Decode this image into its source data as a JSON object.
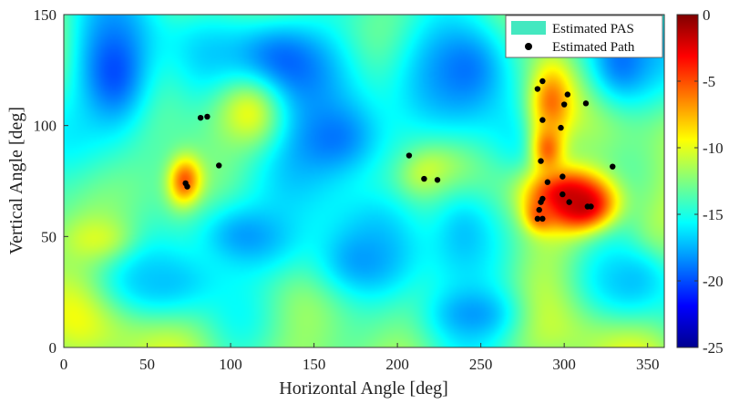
{
  "chart_data": {
    "type": "heatmap",
    "title": "",
    "xlabel": "Horizontal Angle [deg]",
    "ylabel": "Vertical Angle [deg]",
    "xlim": [
      0,
      360
    ],
    "ylim": [
      0,
      150
    ],
    "xticks": [
      "0",
      "50",
      "100",
      "150",
      "200",
      "250",
      "300",
      "350"
    ],
    "yticks": [
      "0",
      "50",
      "100",
      "150"
    ],
    "colorbar": {
      "range": [
        -25,
        0
      ],
      "ticks": [
        "0",
        "-5",
        "-10",
        "-15",
        "-20",
        "-25"
      ],
      "colormap": "jet"
    },
    "legend": {
      "location": "top-right",
      "entries": [
        {
          "label": "Estimated PAS",
          "marker": "patch",
          "color": "#44e8c0"
        },
        {
          "label": "Estimated Path",
          "marker": "dot",
          "color": "#000000"
        }
      ]
    },
    "background_level_db": -12.5,
    "hotspots": [
      {
        "h": 73,
        "v": 74,
        "sh": 7,
        "sv": 8,
        "peak_db": -3
      },
      {
        "h": 220,
        "v": 79,
        "sh": 12,
        "sv": 7,
        "peak_db": -7.5
      },
      {
        "h": 300,
        "v": 68,
        "sh": 18,
        "sv": 9,
        "peak_db": -2
      },
      {
        "h": 292,
        "v": 112,
        "sh": 10,
        "sv": 12,
        "peak_db": -4
      },
      {
        "h": 290,
        "v": 90,
        "sh": 7,
        "sv": 9,
        "peak_db": -5
      },
      {
        "h": 311,
        "v": 64,
        "sh": 12,
        "sv": 7,
        "peak_db": -1.5
      },
      {
        "h": 285,
        "v": 60,
        "sh": 6,
        "sv": 5,
        "peak_db": -4
      },
      {
        "h": 30,
        "v": 125,
        "sh": 20,
        "sv": 25,
        "peak_db": -20
      },
      {
        "h": 130,
        "v": 125,
        "sh": 30,
        "sv": 20,
        "peak_db": -20
      },
      {
        "h": 160,
        "v": 95,
        "sh": 30,
        "sv": 18,
        "peak_db": -19
      },
      {
        "h": 110,
        "v": 50,
        "sh": 30,
        "sv": 15,
        "peak_db": -18
      },
      {
        "h": 180,
        "v": 40,
        "sh": 25,
        "sv": 15,
        "peak_db": -18
      },
      {
        "h": 240,
        "v": 125,
        "sh": 25,
        "sv": 20,
        "peak_db": -19
      },
      {
        "h": 240,
        "v": 50,
        "sh": 20,
        "sv": 20,
        "peak_db": -17
      },
      {
        "h": 335,
        "v": 130,
        "sh": 18,
        "sv": 18,
        "peak_db": -19
      },
      {
        "h": 20,
        "v": 48,
        "sh": 15,
        "sv": 8,
        "peak_db": -10
      },
      {
        "h": 360,
        "v": 48,
        "sh": 10,
        "sv": 8,
        "peak_db": -11
      },
      {
        "h": 340,
        "v": 30,
        "sh": 20,
        "sv": 12,
        "peak_db": -17
      },
      {
        "h": 60,
        "v": 30,
        "sh": 25,
        "sv": 10,
        "peak_db": -17
      },
      {
        "h": 245,
        "v": 15,
        "sh": 20,
        "sv": 10,
        "peak_db": -18
      },
      {
        "h": 110,
        "v": 105,
        "sh": 15,
        "sv": 12,
        "peak_db": -10
      }
    ],
    "paths": [
      {
        "h": 82,
        "v": 103.5
      },
      {
        "h": 86,
        "v": 104
      },
      {
        "h": 93,
        "v": 82
      },
      {
        "h": 73,
        "v": 74
      },
      {
        "h": 74,
        "v": 72.5
      },
      {
        "h": 207,
        "v": 86.5
      },
      {
        "h": 216,
        "v": 76
      },
      {
        "h": 224,
        "v": 75.5
      },
      {
        "h": 284,
        "v": 116.5
      },
      {
        "h": 287,
        "v": 120
      },
      {
        "h": 302,
        "v": 114
      },
      {
        "h": 300,
        "v": 109.5
      },
      {
        "h": 313,
        "v": 110
      },
      {
        "h": 287,
        "v": 102.5
      },
      {
        "h": 298,
        "v": 99
      },
      {
        "h": 286,
        "v": 84
      },
      {
        "h": 329,
        "v": 81.5
      },
      {
        "h": 299,
        "v": 77
      },
      {
        "h": 290,
        "v": 74.5
      },
      {
        "h": 299,
        "v": 69
      },
      {
        "h": 303,
        "v": 65.5
      },
      {
        "h": 287,
        "v": 67
      },
      {
        "h": 286,
        "v": 65.5
      },
      {
        "h": 314,
        "v": 63.5
      },
      {
        "h": 316,
        "v": 63.5
      },
      {
        "h": 285,
        "v": 62
      },
      {
        "h": 284,
        "v": 58
      },
      {
        "h": 287,
        "v": 58
      }
    ]
  }
}
